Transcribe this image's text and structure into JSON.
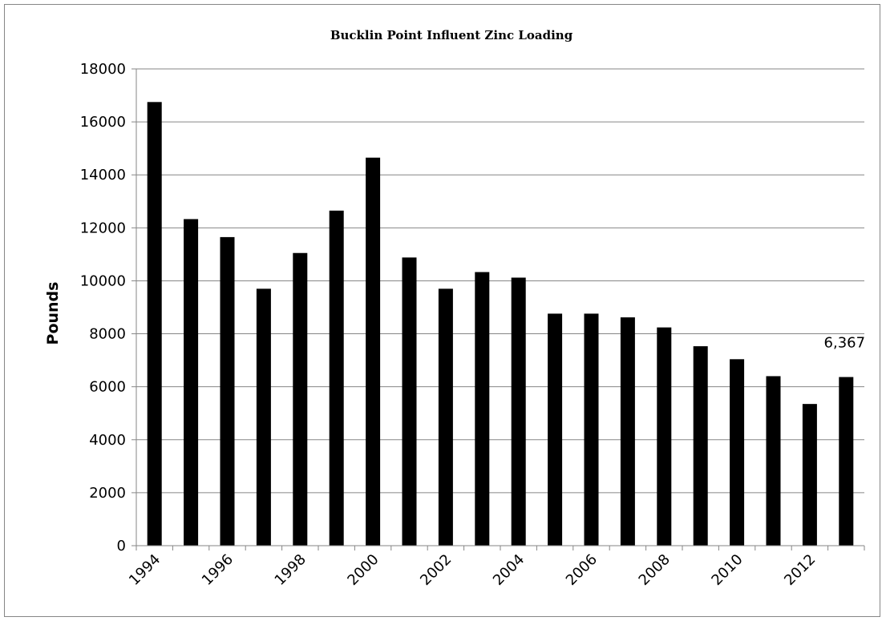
{
  "chart_data": {
    "type": "bar",
    "title": "Bucklin Point Influent Zinc Loading",
    "xlabel": "",
    "ylabel": "Pounds",
    "ylim": [
      0,
      18000
    ],
    "yticks": [
      "0",
      "2000",
      "4000",
      "6000",
      "8000",
      "10000",
      "12000",
      "14000",
      "16000",
      "18000"
    ],
    "xtick_labels": [
      "1994",
      "1996",
      "1998",
      "2000",
      "2002",
      "2004",
      "2006",
      "2008",
      "2010",
      "2012"
    ],
    "categories": [
      "1994",
      "1995",
      "1996",
      "1997",
      "1998",
      "1999",
      "2000",
      "2001",
      "2002",
      "2003",
      "2004",
      "2005",
      "2006",
      "2007",
      "2008",
      "2009",
      "2010",
      "2011",
      "2012",
      "2013"
    ],
    "values": [
      16750,
      12330,
      11650,
      9700,
      11050,
      12650,
      14650,
      10880,
      9700,
      10330,
      10120,
      8760,
      8760,
      8620,
      8240,
      7530,
      7040,
      6400,
      5350,
      6367
    ],
    "grid": true,
    "legend": "none",
    "bar_color": "#000000",
    "annotations": [
      {
        "category": "2013",
        "text": "6,367"
      }
    ]
  }
}
